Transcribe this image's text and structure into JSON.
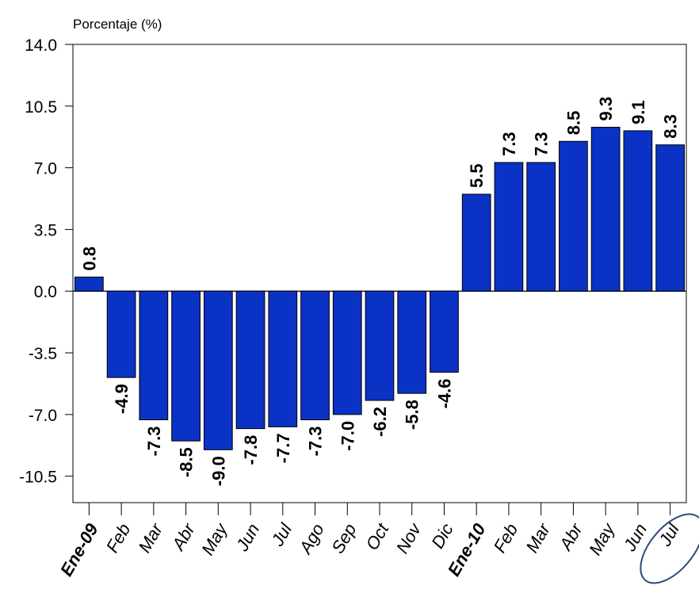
{
  "chart_data": {
    "type": "bar",
    "ylabel": "Porcentaje (%)",
    "ylim": [
      -12.0,
      14.0
    ],
    "yticks": [
      "14.0",
      "10.5",
      "7.0",
      "3.5",
      "0.0",
      "-3.5",
      "-7.0",
      "-10.5"
    ],
    "ytick_values": [
      14.0,
      10.5,
      7.0,
      3.5,
      0.0,
      -3.5,
      -7.0,
      -10.5
    ],
    "categories": [
      "Ene-09",
      "Feb",
      "Mar",
      "Abr",
      "May",
      "Jun",
      "Jul",
      "Ago",
      "Sep",
      "Oct",
      "Nov",
      "Dic",
      "Ene-10",
      "Feb",
      "Mar",
      "Abr",
      "May",
      "Jun",
      "Jul"
    ],
    "bold_categories": [
      "Ene-09",
      "Ene-10"
    ],
    "values": [
      0.8,
      -4.9,
      -7.3,
      -8.5,
      -9.0,
      -7.8,
      -7.7,
      -7.3,
      -7.0,
      -6.2,
      -5.8,
      -4.6,
      5.5,
      7.3,
      7.3,
      8.5,
      9.3,
      9.1,
      8.3
    ],
    "value_labels": [
      "0.8",
      "-4.9",
      "-7.3",
      "-8.5",
      "-9.0",
      "-7.8",
      "-7.7",
      "-7.3",
      "-7.0",
      "-6.2",
      "-5.8",
      "-4.6",
      "5.5",
      "7.3",
      "7.3",
      "8.5",
      "9.3",
      "9.1",
      "8.3"
    ],
    "bar_color": "#0a32c4",
    "highlight": "Jul",
    "highlight_color": "#2b4a7a",
    "grid": false,
    "legend": "none"
  }
}
